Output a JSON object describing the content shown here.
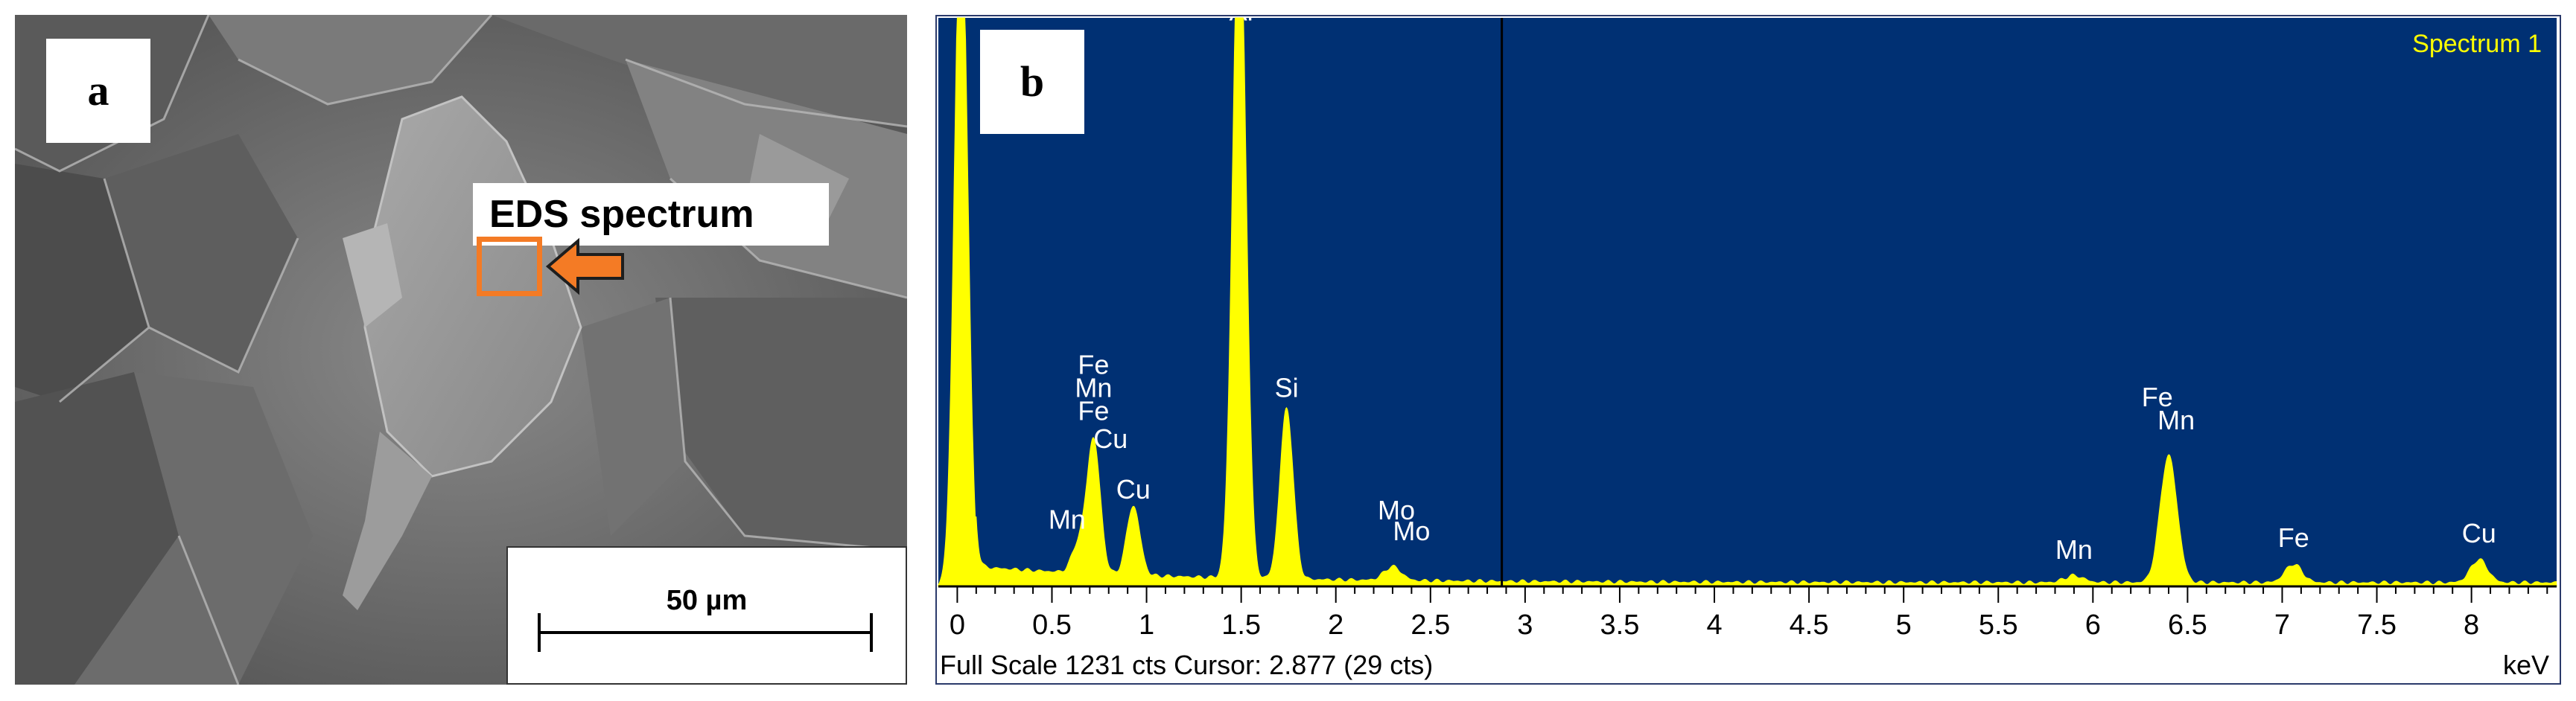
{
  "panel_a": {
    "label": "a",
    "callout": "EDS spectrum",
    "scale_bar": "50 µm"
  },
  "panel_b": {
    "label": "b"
  },
  "chart_data": {
    "type": "area",
    "title": "Spectrum 1",
    "xlabel": "keV",
    "footer": "Full Scale 1231 cts Cursor: 2.877  (29 cts)",
    "xlim": [
      -0.1,
      8.45
    ],
    "ylim": [
      0,
      1231
    ],
    "cursor_kev": 2.877,
    "x_ticks": [
      0,
      0.5,
      1,
      1.5,
      2,
      2.5,
      3,
      3.5,
      4,
      4.5,
      5,
      5.5,
      6,
      6.5,
      7,
      7.5,
      8
    ],
    "x_tick_labels": [
      "0",
      "0.5",
      "1",
      "1.5",
      "2",
      "2.5",
      "3",
      "3.5",
      "4",
      "4.5",
      "5",
      "5.5",
      "6",
      "6.5",
      "7",
      "7.5",
      "8"
    ],
    "colors": {
      "background": "#003073",
      "fill": "#ffff00",
      "text": "#ffffff",
      "title": "#ffff00"
    },
    "peaks": [
      {
        "kev": 0.02,
        "counts": 1500,
        "width": 0.035
      },
      {
        "kev": 0.64,
        "counts": 60,
        "width": 0.035
      },
      {
        "kev": 0.72,
        "counts": 290,
        "width": 0.035
      },
      {
        "kev": 0.93,
        "counts": 150,
        "width": 0.035
      },
      {
        "kev": 1.49,
        "counts": 1500,
        "width": 0.035
      },
      {
        "kev": 1.74,
        "counts": 370,
        "width": 0.035
      },
      {
        "kev": 2.3,
        "counts": 30,
        "width": 0.045
      },
      {
        "kev": 5.9,
        "counts": 15,
        "width": 0.05
      },
      {
        "kev": 6.4,
        "counts": 275,
        "width": 0.045
      },
      {
        "kev": 7.06,
        "counts": 40,
        "width": 0.045
      },
      {
        "kev": 8.04,
        "counts": 50,
        "width": 0.045
      }
    ],
    "peak_labels": [
      {
        "text": "Fe",
        "kev": 0.72,
        "counts": 460
      },
      {
        "text": "Mn",
        "kev": 0.72,
        "counts": 410
      },
      {
        "text": "Fe",
        "kev": 0.72,
        "counts": 360
      },
      {
        "text": "Cu",
        "kev": 0.81,
        "counts": 300
      },
      {
        "text": "Mn",
        "kev": 0.58,
        "counts": 125
      },
      {
        "text": "Cu",
        "kev": 0.93,
        "counts": 190
      },
      {
        "text": "Al",
        "kev": 1.5,
        "counts": 1225
      },
      {
        "text": "Si",
        "kev": 1.74,
        "counts": 410
      },
      {
        "text": "Mo",
        "kev": 2.32,
        "counts": 145
      },
      {
        "text": "Mo",
        "kev": 2.4,
        "counts": 100
      },
      {
        "text": "Mn",
        "kev": 5.9,
        "counts": 60
      },
      {
        "text": "Fe",
        "kev": 6.34,
        "counts": 390
      },
      {
        "text": "Mn",
        "kev": 6.44,
        "counts": 340
      },
      {
        "text": "Fe",
        "kev": 7.06,
        "counts": 85
      },
      {
        "text": "Cu",
        "kev": 8.04,
        "counts": 95
      }
    ]
  }
}
